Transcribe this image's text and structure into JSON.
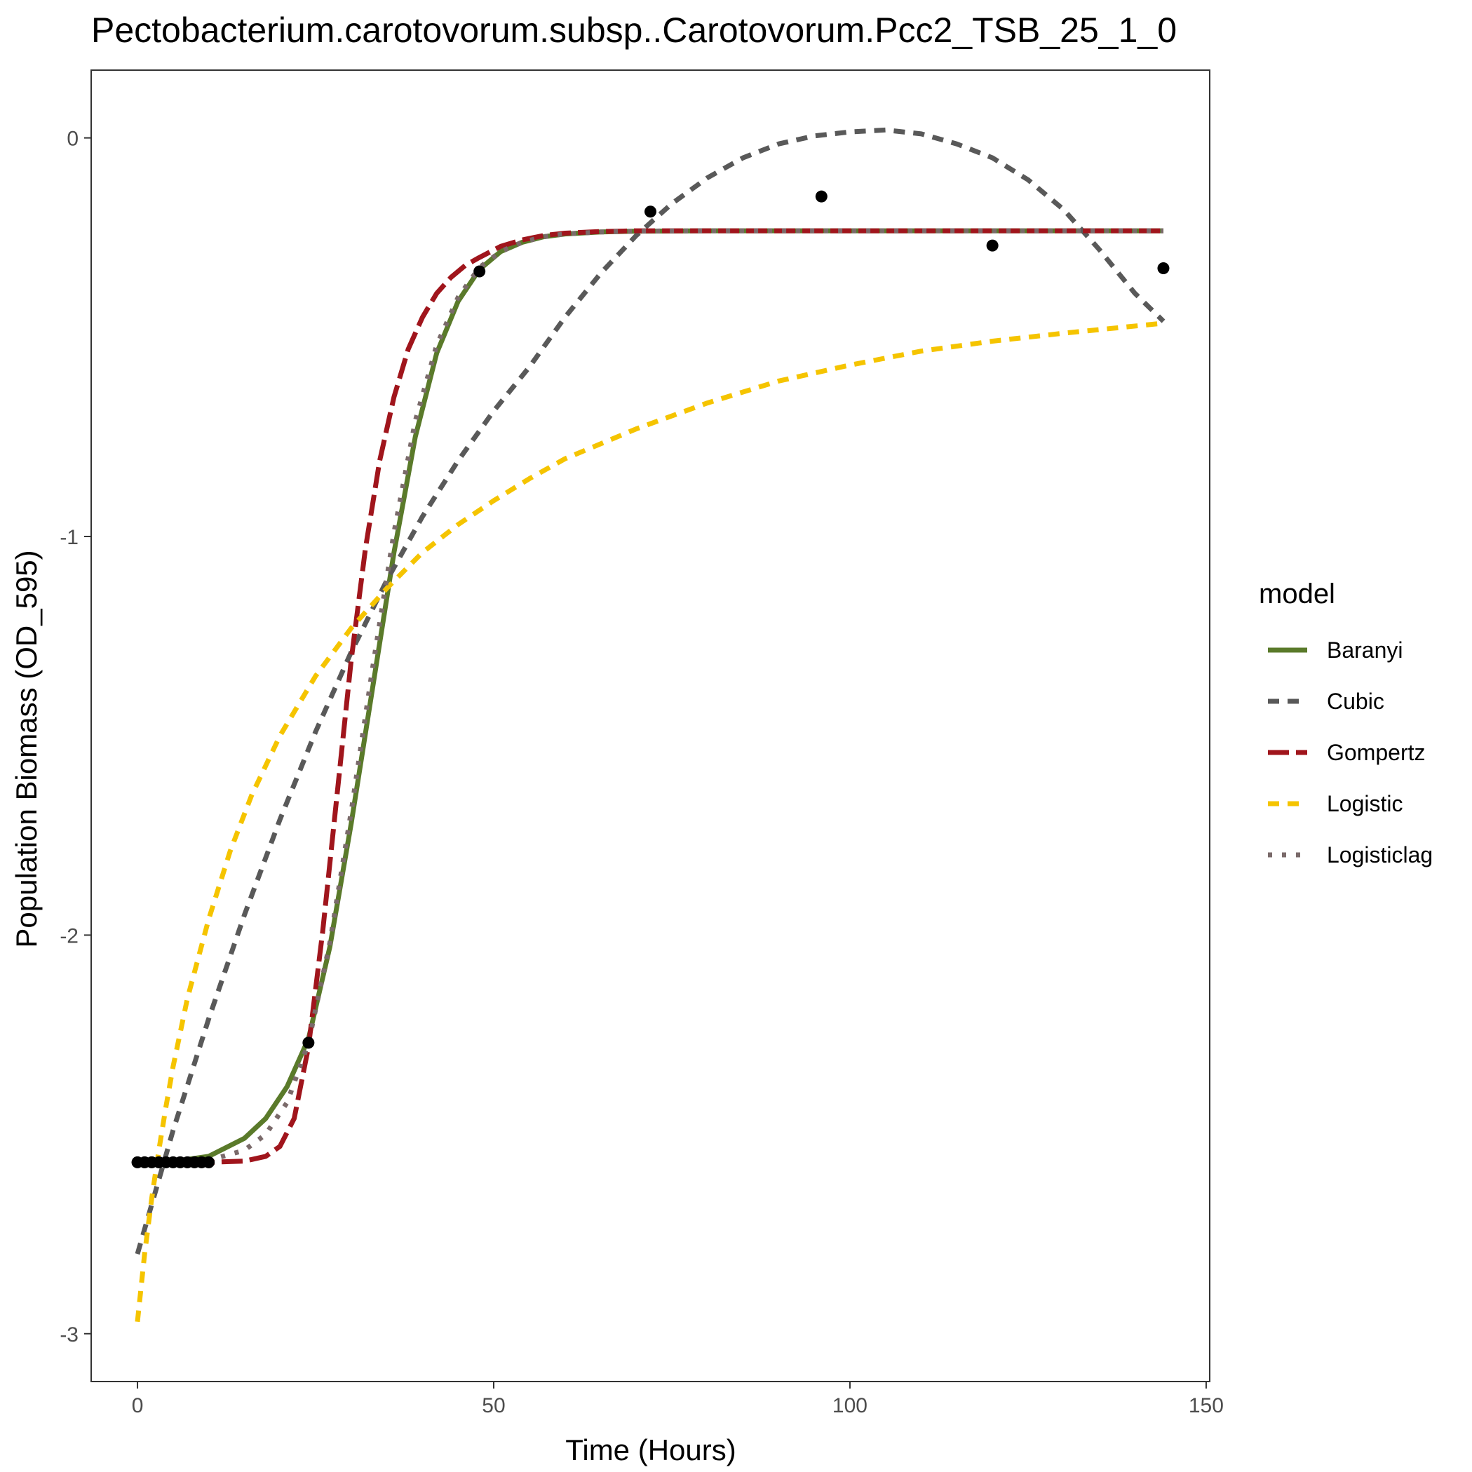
{
  "chart_data": {
    "type": "line",
    "title": "Pectobacterium.carotovorum.subsp..Carotovorum.Pcc2_TSB_25_1_0",
    "xlabel": "Time (Hours)",
    "ylabel": "Population Biomass (OD_595)",
    "xlim": [
      -6.5,
      150.5
    ],
    "ylim": [
      -3.12,
      0.17
    ],
    "x_ticks": [
      0,
      50,
      100,
      150
    ],
    "x_tick_labels": [
      "0",
      "50",
      "100",
      "150"
    ],
    "y_ticks": [
      0,
      -1,
      -2,
      -3
    ],
    "y_tick_labels": [
      "0",
      "-1",
      "-2",
      "-3"
    ],
    "grid": false,
    "legend": {
      "title": "model",
      "position": "right"
    },
    "points": {
      "x": [
        0,
        1,
        2,
        3,
        4,
        5,
        6,
        7,
        8,
        9,
        10,
        24,
        48,
        72,
        96,
        120,
        144
      ],
      "y": [
        -2.57,
        -2.57,
        -2.57,
        -2.57,
        -2.57,
        -2.57,
        -2.57,
        -2.57,
        -2.57,
        -2.57,
        -2.57,
        -2.27,
        -0.335,
        -0.185,
        -0.147,
        -0.27,
        -0.327
      ]
    },
    "series": [
      {
        "name": "Baranyi",
        "color": "#5a7a2a",
        "dash": "solid",
        "x": [
          0,
          5,
          10,
          15,
          18,
          21,
          24,
          27,
          30,
          33,
          36,
          39,
          42,
          45,
          48,
          51,
          54,
          57,
          60,
          65,
          70,
          80,
          100,
          120,
          144
        ],
        "y": [
          -2.57,
          -2.568,
          -2.555,
          -2.51,
          -2.46,
          -2.38,
          -2.26,
          -2.03,
          -1.72,
          -1.38,
          -1.04,
          -0.75,
          -0.54,
          -0.41,
          -0.33,
          -0.285,
          -0.262,
          -0.248,
          -0.241,
          -0.236,
          -0.234,
          -0.233,
          -0.233,
          -0.233,
          -0.233
        ]
      },
      {
        "name": "Cubic",
        "color": "#595959",
        "dash": "dashed",
        "x": [
          0,
          5,
          10,
          15,
          20,
          25,
          30,
          35,
          40,
          45,
          50,
          55,
          60,
          65,
          70,
          75,
          80,
          85,
          90,
          95,
          100,
          105,
          110,
          115,
          120,
          125,
          130,
          135,
          140,
          144
        ],
        "y": [
          -2.8,
          -2.49,
          -2.21,
          -1.95,
          -1.71,
          -1.49,
          -1.29,
          -1.11,
          -0.95,
          -0.81,
          -0.685,
          -0.575,
          -0.45,
          -0.34,
          -0.245,
          -0.165,
          -0.1,
          -0.05,
          -0.015,
          0.005,
          0.015,
          0.02,
          0.01,
          -0.015,
          -0.05,
          -0.105,
          -0.18,
          -0.28,
          -0.39,
          -0.46
        ]
      },
      {
        "name": "Gompertz",
        "color": "#a0151c",
        "dash": "longdash",
        "x": [
          0,
          5,
          10,
          15,
          18,
          20,
          22,
          24,
          26,
          28,
          30,
          32,
          34,
          36,
          38,
          40,
          42,
          44,
          46,
          48,
          51,
          54,
          57,
          60,
          65,
          70,
          80,
          100,
          120,
          144
        ],
        "y": [
          -2.57,
          -2.57,
          -2.57,
          -2.567,
          -2.555,
          -2.53,
          -2.46,
          -2.28,
          -1.99,
          -1.65,
          -1.31,
          -1.03,
          -0.81,
          -0.65,
          -0.53,
          -0.45,
          -0.39,
          -0.35,
          -0.32,
          -0.3,
          -0.272,
          -0.256,
          -0.245,
          -0.239,
          -0.235,
          -0.233,
          -0.233,
          -0.233,
          -0.233,
          -0.233
        ]
      },
      {
        "name": "Logistic",
        "color": "#f5c400",
        "dash": "dashed",
        "x": [
          0,
          1,
          2,
          3,
          4,
          5,
          7,
          10,
          13,
          16,
          20,
          25,
          30,
          35,
          40,
          45,
          50,
          55,
          60,
          70,
          80,
          90,
          100,
          110,
          120,
          130,
          144
        ],
        "y": [
          -2.97,
          -2.8,
          -2.66,
          -2.54,
          -2.43,
          -2.33,
          -2.16,
          -1.96,
          -1.79,
          -1.65,
          -1.5,
          -1.35,
          -1.23,
          -1.13,
          -1.04,
          -0.97,
          -0.91,
          -0.855,
          -0.805,
          -0.73,
          -0.665,
          -0.61,
          -0.57,
          -0.535,
          -0.51,
          -0.49,
          -0.465
        ]
      },
      {
        "name": "Logisticlag",
        "color": "#7a6a6a",
        "dash": "dotted",
        "x": [
          0,
          5,
          10,
          15,
          18,
          21,
          24,
          27,
          30,
          33,
          36,
          39,
          42,
          45,
          48,
          51,
          54,
          57,
          60,
          65,
          70,
          80,
          100,
          120,
          144
        ],
        "y": [
          -2.57,
          -2.57,
          -2.565,
          -2.54,
          -2.5,
          -2.42,
          -2.27,
          -2.02,
          -1.69,
          -1.33,
          -0.99,
          -0.71,
          -0.52,
          -0.4,
          -0.325,
          -0.285,
          -0.262,
          -0.248,
          -0.241,
          -0.236,
          -0.234,
          -0.233,
          -0.233,
          -0.233,
          -0.233
        ]
      }
    ]
  }
}
